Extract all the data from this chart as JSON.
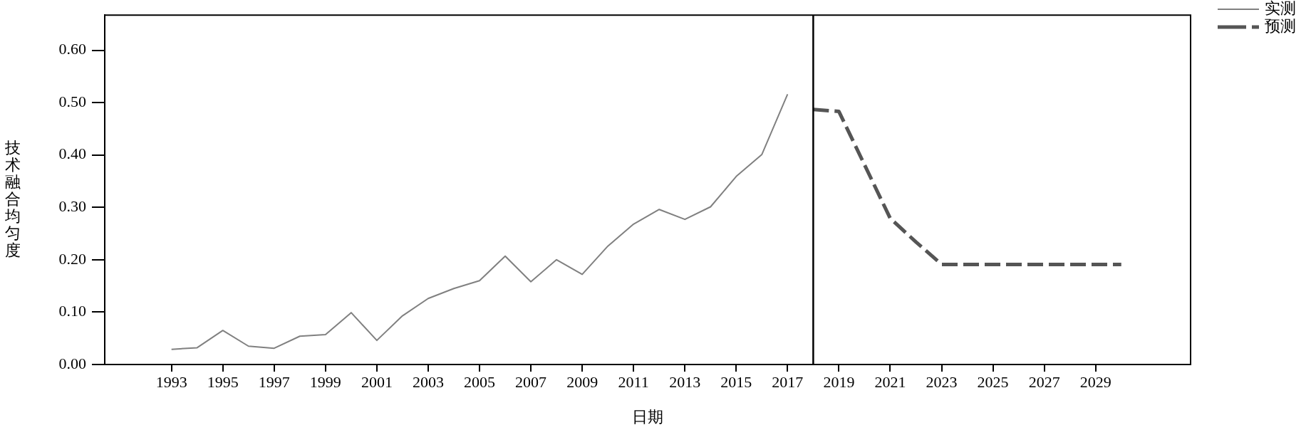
{
  "chart_data": {
    "type": "line",
    "xlabel": "日期",
    "ylabel": "技术融合均匀度",
    "xlim": [
      1990.4,
      2032.7
    ],
    "xticks": [
      1993,
      1995,
      1997,
      1999,
      2001,
      2003,
      2005,
      2007,
      2009,
      2011,
      2013,
      2015,
      2017,
      2019,
      2021,
      2023,
      2025,
      2027,
      2029
    ],
    "ylim": [
      0,
      0.667
    ],
    "yticks": [
      {
        "value": 0,
        "label": "0.00"
      },
      {
        "value": 0.1,
        "label": "0.10"
      },
      {
        "value": 0.2,
        "label": "0.20"
      },
      {
        "value": 0.3,
        "label": "0.30"
      },
      {
        "value": 0.4,
        "label": "0.40"
      },
      {
        "value": 0.5,
        "label": "0.50"
      },
      {
        "value": 0.6,
        "label": "0.60"
      }
    ],
    "grid": false,
    "legend": "top right",
    "marker": "none",
    "ref_lines": [
      {
        "axis": "x",
        "value": 2018,
        "color": "#000000"
      }
    ],
    "series": [
      {
        "name": "实测",
        "color": "#808080",
        "line_style": "solid",
        "x": [
          1993,
          1994,
          1995,
          1996,
          1997,
          1998,
          1999,
          2000,
          2001,
          2002,
          2003,
          2004,
          2005,
          2006,
          2007,
          2008,
          2009,
          2010,
          2011,
          2012,
          2013,
          2014,
          2015,
          2016,
          2017
        ],
        "values": [
          0.029,
          0.032,
          0.065,
          0.035,
          0.031,
          0.054,
          0.057,
          0.099,
          0.046,
          0.093,
          0.126,
          0.145,
          0.16,
          0.207,
          0.158,
          0.2,
          0.172,
          0.226,
          0.268,
          0.296,
          0.277,
          0.301,
          0.359,
          0.401,
          0.516
        ]
      },
      {
        "name": "预测",
        "color": "#555555",
        "line_style": "dashed",
        "x": [
          2018,
          2019,
          2020,
          2021,
          2022,
          2023,
          2024,
          2025,
          2026,
          2027,
          2028,
          2029,
          2030
        ],
        "values": [
          0.487,
          0.483,
          0.381,
          0.279,
          0.234,
          0.191,
          0.191,
          0.191,
          0.191,
          0.191,
          0.191,
          0.191,
          0.191
        ]
      }
    ]
  }
}
